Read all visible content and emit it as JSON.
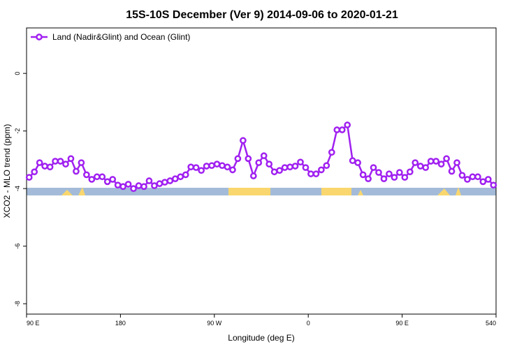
{
  "chart_data": {
    "type": "line",
    "title": "15S-10S December (Ver 9)   2014-09-06 to 2020-01-21",
    "x_label": "Longitude (deg E)",
    "y_label": "XCO2 - MLO trend (ppm)",
    "x": [
      92.5,
      97.5,
      102.5,
      107.5,
      112.5,
      117.5,
      122.5,
      127.5,
      132.5,
      137.5,
      142.5,
      147.5,
      152.5,
      157.5,
      162.5,
      167.5,
      172.5,
      177.5,
      182.5,
      187.5,
      192.5,
      197.5,
      202.5,
      207.5,
      212.5,
      217.5,
      222.5,
      227.5,
      232.5,
      237.5,
      242.5,
      247.5,
      252.5,
      257.5,
      262.5,
      267.5,
      272.5,
      277.5,
      282.5,
      287.5,
      292.5,
      297.5,
      302.5,
      307.5,
      312.5,
      317.5,
      322.5,
      327.5,
      332.5,
      337.5,
      342.5,
      347.5,
      352.5,
      357.5,
      362.5,
      367.5,
      372.5,
      377.5,
      382.5,
      387.5,
      392.5,
      397.5,
      402.5,
      407.5,
      412.5,
      417.5,
      422.5,
      427.5,
      432.5,
      437.5,
      442.5,
      447.5,
      452.5,
      457.5,
      462.5,
      467.5,
      472.5,
      477.5,
      482.5,
      487.5,
      492.5,
      497.5,
      502.5,
      507.5,
      512.5,
      517.5,
      522.5,
      527.5,
      532.5,
      537.5
    ],
    "series": [
      {
        "name": "Land (Nadir&Glint) and Ocean (Glint)",
        "color": "#a020f0",
        "values": [
          -3.61,
          -3.42,
          -3.1,
          -3.22,
          -3.25,
          -3.05,
          -3.05,
          -3.15,
          -2.96,
          -3.4,
          -3.1,
          -3.52,
          -3.68,
          -3.59,
          -3.59,
          -3.76,
          -3.68,
          -3.88,
          -3.93,
          -3.85,
          -4.0,
          -3.9,
          -3.93,
          -3.73,
          -3.9,
          -3.83,
          -3.78,
          -3.73,
          -3.66,
          -3.59,
          -3.52,
          -3.25,
          -3.27,
          -3.37,
          -3.22,
          -3.2,
          -3.15,
          -3.2,
          -3.25,
          -3.35,
          -2.96,
          -2.33,
          -2.96,
          -3.56,
          -3.1,
          -2.86,
          -3.15,
          -3.42,
          -3.37,
          -3.27,
          -3.25,
          -3.22,
          -3.08,
          -3.27,
          -3.49,
          -3.49,
          -3.35,
          -3.2,
          -2.74,
          -1.96,
          -1.96,
          -1.79,
          -3.03,
          -3.1,
          -3.52,
          -3.66,
          -3.27,
          -3.44,
          -3.66,
          -3.49,
          -3.61,
          -3.44,
          -3.61,
          -3.42,
          -3.1,
          -3.22,
          -3.27,
          -3.05,
          -3.05,
          -3.15,
          -2.96,
          -3.4,
          -3.1,
          -3.54,
          -3.68,
          -3.59,
          -3.59,
          -3.76,
          -3.68,
          -3.88
        ]
      }
    ],
    "xlim": [
      90,
      540
    ],
    "xticks": [
      {
        "value": 90,
        "label": "90 E"
      },
      180,
      {
        "value": 270,
        "label": "90 W"
      },
      {
        "value": 360,
        "label": "0"
      },
      {
        "value": 450,
        "label": "90 E"
      },
      540
    ],
    "ylim": [
      -8.36,
      1.58
    ],
    "yticks": [
      -8,
      -6,
      -4,
      -2,
      0
    ],
    "legend": "top-left"
  }
}
